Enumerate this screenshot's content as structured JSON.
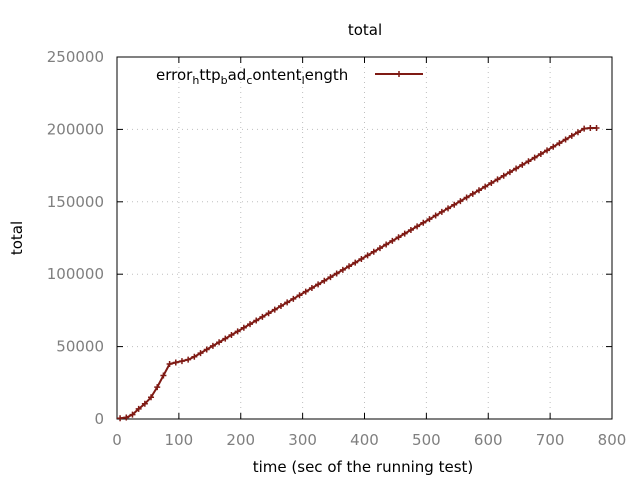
{
  "chart_data": {
    "type": "line",
    "title": "total",
    "xlabel": "time (sec of the running test)",
    "ylabel": "total",
    "xlim": [
      0,
      800
    ],
    "ylim": [
      0,
      250000
    ],
    "x_ticks": [
      "0",
      "100",
      "200",
      "300",
      "400",
      "500",
      "600",
      "700",
      "800"
    ],
    "y_ticks": [
      "0",
      "50000",
      "100000",
      "150000",
      "200000",
      "250000"
    ],
    "grid": true,
    "legend_position": "top-left",
    "series": [
      {
        "name": "error_http_bad_content_length",
        "legend_parts": [
          {
            "text": "error",
            "sub": false
          },
          {
            "text": "h",
            "sub": true
          },
          {
            "text": "ttp",
            "sub": false
          },
          {
            "text": "b",
            "sub": true
          },
          {
            "text": "ad",
            "sub": false
          },
          {
            "text": "c",
            "sub": true
          },
          {
            "text": "ontent",
            "sub": false
          },
          {
            "text": "l",
            "sub": true
          },
          {
            "text": "ength",
            "sub": false
          }
        ],
        "color": "#7f1a14",
        "marker": "plus",
        "x": [
          5,
          15,
          25,
          35,
          45,
          55,
          65,
          75,
          85,
          95,
          105,
          115,
          125,
          135,
          145,
          155,
          165,
          175,
          185,
          195,
          205,
          215,
          225,
          235,
          245,
          255,
          265,
          275,
          285,
          295,
          305,
          315,
          325,
          335,
          345,
          355,
          365,
          375,
          385,
          395,
          405,
          415,
          425,
          435,
          445,
          455,
          465,
          475,
          485,
          495,
          505,
          515,
          525,
          535,
          545,
          555,
          565,
          575,
          585,
          595,
          605,
          615,
          625,
          635,
          645,
          655,
          665,
          675,
          685,
          695,
          705,
          715,
          725,
          735,
          745,
          755,
          765,
          775
        ],
        "y": [
          500,
          1000,
          3000,
          7000,
          10500,
          15000,
          22000,
          30000,
          38000,
          39000,
          40000,
          41000,
          43000,
          45500,
          48000,
          50500,
          53000,
          55500,
          58000,
          60500,
          63000,
          65500,
          68000,
          70500,
          73000,
          75500,
          78000,
          80500,
          83000,
          85500,
          88000,
          90500,
          93000,
          95500,
          98000,
          100500,
          103000,
          105500,
          108000,
          110500,
          113000,
          115500,
          118000,
          120500,
          123000,
          125500,
          128000,
          130500,
          133000,
          135500,
          138000,
          140500,
          143000,
          145500,
          148000,
          150500,
          153000,
          155500,
          158000,
          160500,
          163000,
          165500,
          168000,
          170500,
          173000,
          175500,
          178000,
          180500,
          183000,
          185500,
          188000,
          190500,
          193000,
          195500,
          198000,
          200500,
          201000,
          201000
        ]
      }
    ]
  }
}
